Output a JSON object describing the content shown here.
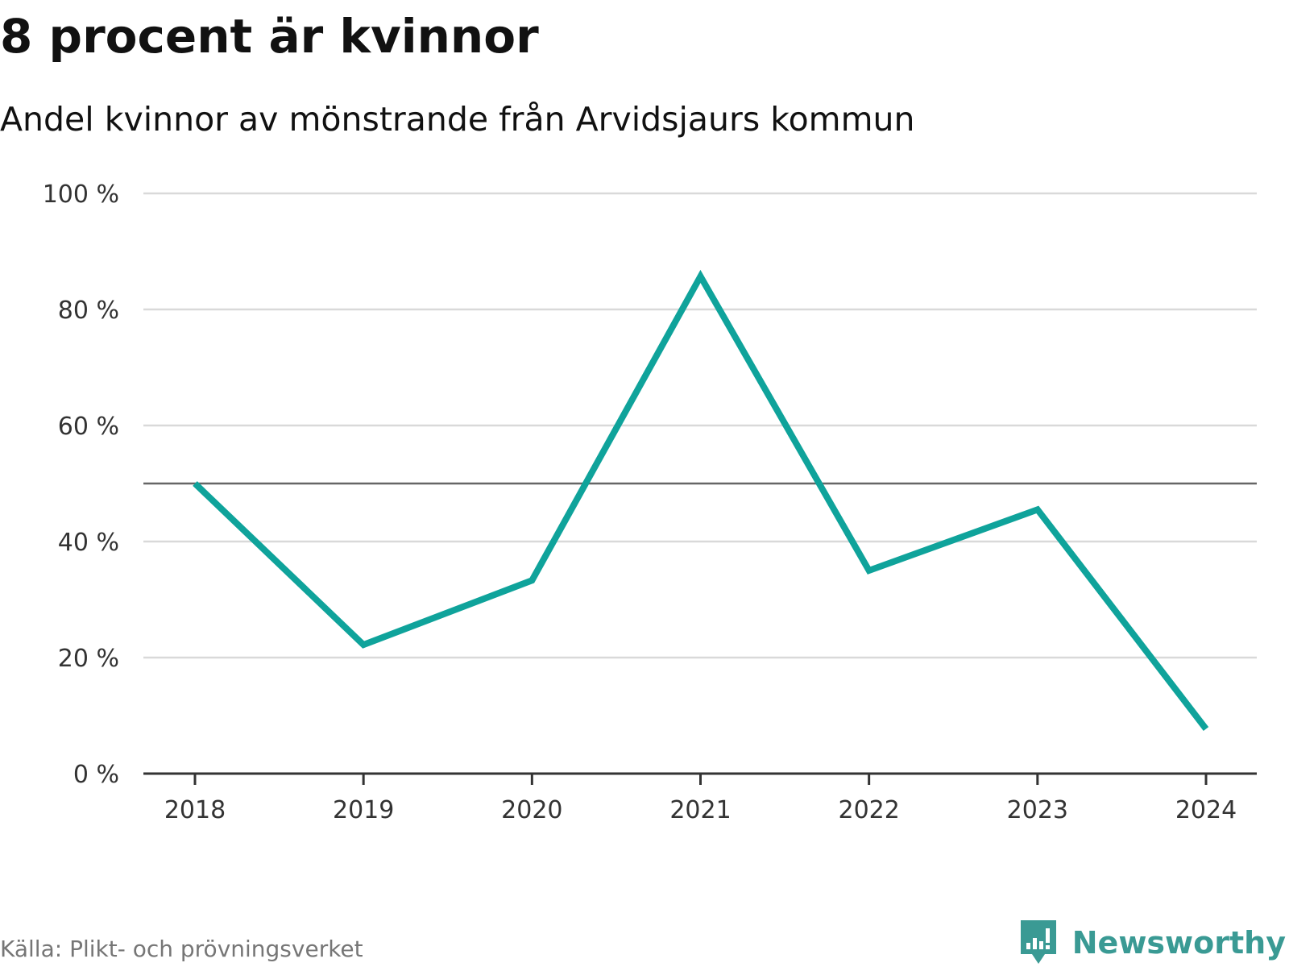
{
  "header": {
    "title": "8 procent är kvinnor",
    "subtitle": "Andel kvinnor av mönstrande från Arvidsjaurs kommun"
  },
  "footer": {
    "source": "Källa: Plikt- och prövningsverket",
    "brand": "Newsworthy"
  },
  "colors": {
    "line": "#0fa39b",
    "grid": "#d9d9d9",
    "reference": "#666666",
    "axis": "#333333",
    "brand": "#3a9a94"
  },
  "chart_data": {
    "type": "line",
    "x": [
      "2018",
      "2019",
      "2020",
      "2021",
      "2022",
      "2023",
      "2024"
    ],
    "series": [
      {
        "values": [
          50,
          22.2,
          33.3,
          85.7,
          35,
          45.5,
          7.7
        ]
      }
    ],
    "ylim": [
      0,
      100
    ],
    "yticks": [
      0,
      20,
      40,
      60,
      80,
      100
    ],
    "ytick_labels": [
      "0 %",
      "20 %",
      "40 %",
      "60 %",
      "80 %",
      "100 %"
    ],
    "reference_line": 50,
    "grid": true,
    "legend": "none"
  }
}
